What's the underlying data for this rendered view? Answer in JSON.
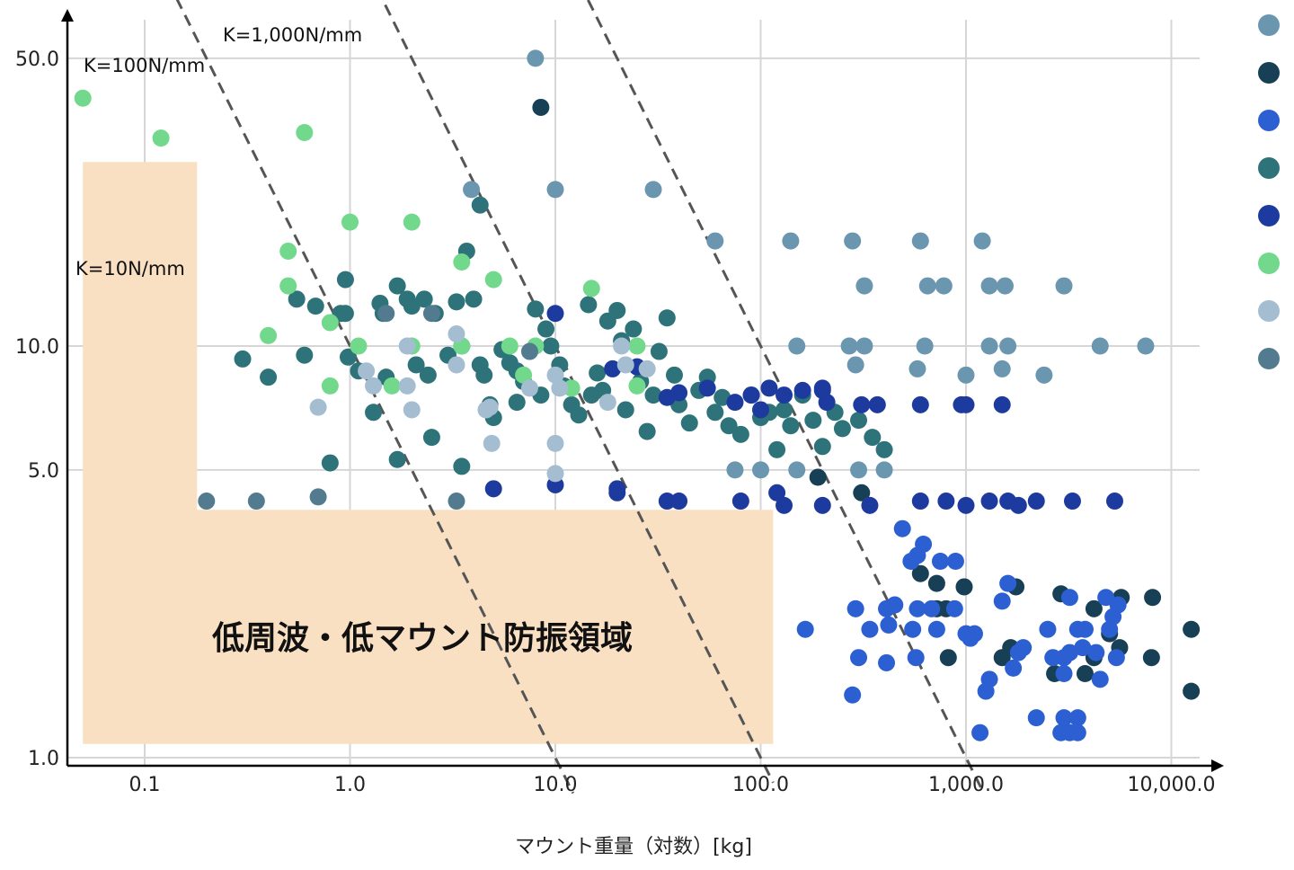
{
  "chart_data": {
    "type": "scatter",
    "xlabel": "マウント重量（対数）[kg]",
    "ylabel": "",
    "title": "",
    "x_scale": "log",
    "y_scale": "log",
    "xlim": [
      0.042,
      14000
    ],
    "ylim": [
      0.92,
      62
    ],
    "x_ticks": [
      0.1,
      1,
      10,
      100,
      1000,
      10000
    ],
    "x_tick_labels": [
      "0.1",
      "1.0",
      "10.0",
      "100.0",
      "1,000.0",
      "10,000.0"
    ],
    "y_ticks": [
      1,
      5,
      10,
      50
    ],
    "y_tick_labels": [
      "1.0",
      "5.0",
      "10.0",
      "50.0"
    ],
    "grid": true,
    "legend_position": "right",
    "reference_lines": [
      {
        "label": "K=10N/mm",
        "k": 10,
        "x_range": [
          0.046,
          12.2
        ]
      },
      {
        "label": "K=100N/mm",
        "k": 100,
        "x_range": [
          0.045,
          115
        ]
      },
      {
        "label": "K=1,000N/mm",
        "k": 1000,
        "x_range": [
          0.3,
          1200
        ]
      }
    ],
    "region": {
      "label": "低周波・低マウント防振領域",
      "color": "#fae0c3",
      "polygon": [
        [
          0.05,
          1.08
        ],
        [
          0.05,
          28
        ],
        [
          0.18,
          28
        ],
        [
          0.18,
          4.0
        ],
        [
          115,
          4.0
        ],
        [
          115,
          1.08
        ]
      ]
    },
    "series": [
      {
        "color": "#6b96b0",
        "points": [
          [
            8,
            50
          ],
          [
            3.9,
            24
          ],
          [
            10,
            24
          ],
          [
            30,
            24
          ],
          [
            60,
            18
          ],
          [
            140,
            18
          ],
          [
            280,
            18
          ],
          [
            600,
            18
          ],
          [
            1200,
            18
          ],
          [
            320,
            14
          ],
          [
            650,
            14
          ],
          [
            780,
            14
          ],
          [
            1300,
            14
          ],
          [
            1550,
            14
          ],
          [
            3000,
            14
          ],
          [
            150,
            10
          ],
          [
            270,
            10
          ],
          [
            320,
            10
          ],
          [
            630,
            10
          ],
          [
            1300,
            10
          ],
          [
            1600,
            10
          ],
          [
            4500,
            10
          ],
          [
            7500,
            10
          ],
          [
            290,
            9
          ],
          [
            580,
            8.8
          ],
          [
            1000,
            8.5
          ],
          [
            1500,
            8.8
          ],
          [
            2400,
            8.5
          ],
          [
            75,
            5.0
          ],
          [
            100,
            5.0
          ],
          [
            150,
            5.0
          ],
          [
            300,
            5.0
          ],
          [
            400,
            5.0
          ]
        ]
      },
      {
        "color": "#173f55",
        "points": [
          [
            8.5,
            38
          ],
          [
            190,
            4.8
          ],
          [
            310,
            4.4
          ],
          [
            600,
            2.8
          ],
          [
            720,
            2.65
          ],
          [
            980,
            2.6
          ],
          [
            1750,
            2.6
          ],
          [
            2900,
            2.5
          ],
          [
            5700,
            2.45
          ],
          [
            8100,
            2.45
          ],
          [
            720,
            2.3
          ],
          [
            800,
            2.3
          ],
          [
            4200,
            2.3
          ],
          [
            5000,
            2.0
          ],
          [
            12500,
            2.05
          ],
          [
            1650,
            1.85
          ],
          [
            5600,
            1.85
          ],
          [
            820,
            1.75
          ],
          [
            1500,
            1.75
          ],
          [
            4200,
            1.75
          ],
          [
            8000,
            1.75
          ],
          [
            2700,
            1.6
          ],
          [
            3800,
            1.6
          ],
          [
            12500,
            1.45
          ]
        ]
      },
      {
        "color": "#2c5fd1",
        "points": [
          [
            490,
            3.6
          ],
          [
            620,
            3.3
          ],
          [
            580,
            3.1
          ],
          [
            540,
            3.0
          ],
          [
            750,
            3.0
          ],
          [
            890,
            3.0
          ],
          [
            1600,
            2.65
          ],
          [
            1500,
            2.4
          ],
          [
            3200,
            2.45
          ],
          [
            4800,
            2.45
          ],
          [
            5500,
            2.35
          ],
          [
            290,
            2.3
          ],
          [
            410,
            2.3
          ],
          [
            450,
            2.35
          ],
          [
            580,
            2.3
          ],
          [
            680,
            2.3
          ],
          [
            880,
            2.3
          ],
          [
            5200,
            2.2
          ],
          [
            420,
            2.1
          ],
          [
            165,
            2.05
          ],
          [
            340,
            2.05
          ],
          [
            550,
            2.05
          ],
          [
            720,
            2.05
          ],
          [
            1000,
            2.0
          ],
          [
            1100,
            2.0
          ],
          [
            1050,
            1.95
          ],
          [
            2500,
            2.05
          ],
          [
            3500,
            2.05
          ],
          [
            3800,
            2.05
          ],
          [
            5000,
            2.05
          ],
          [
            1900,
            1.85
          ],
          [
            1800,
            1.8
          ],
          [
            3700,
            1.85
          ],
          [
            2650,
            1.75
          ],
          [
            3000,
            1.75
          ],
          [
            3200,
            1.8
          ],
          [
            4300,
            1.8
          ],
          [
            5400,
            1.75
          ],
          [
            300,
            1.75
          ],
          [
            570,
            1.75
          ],
          [
            410,
            1.7
          ],
          [
            1700,
            1.65
          ],
          [
            3000,
            1.6
          ],
          [
            1300,
            1.55
          ],
          [
            4500,
            1.55
          ],
          [
            1250,
            1.45
          ],
          [
            280,
            1.42
          ],
          [
            1170,
            1.15
          ],
          [
            2200,
            1.25
          ],
          [
            3000,
            1.25
          ],
          [
            3500,
            1.25
          ],
          [
            2900,
            1.15
          ],
          [
            3200,
            1.15
          ],
          [
            3500,
            1.15
          ]
        ]
      },
      {
        "color": "#2e7379",
        "points": [
          [
            4.3,
            22
          ],
          [
            0.3,
            9.3
          ],
          [
            0.4,
            8.4
          ],
          [
            0.55,
            13
          ],
          [
            0.6,
            9.5
          ],
          [
            0.68,
            12.5
          ],
          [
            0.9,
            12.0
          ],
          [
            0.95,
            14.5
          ],
          [
            0.95,
            12.0
          ],
          [
            0.98,
            9.4
          ],
          [
            1.1,
            8.7
          ],
          [
            1.3,
            6.9
          ],
          [
            1.4,
            12.7
          ],
          [
            1.45,
            12.0
          ],
          [
            1.5,
            8.4
          ],
          [
            1.7,
            14.0
          ],
          [
            1.9,
            13.0
          ],
          [
            2.0,
            12.5
          ],
          [
            2.1,
            9.0
          ],
          [
            2.3,
            13.0
          ],
          [
            2.4,
            8.5
          ],
          [
            2.5,
            6.0
          ],
          [
            2.6,
            12.0
          ],
          [
            3.0,
            9.5
          ],
          [
            3.3,
            12.8
          ],
          [
            3.5,
            10.0
          ],
          [
            3.7,
            17.0
          ],
          [
            4.0,
            13.0
          ],
          [
            4.3,
            9.0
          ],
          [
            4.5,
            8.5
          ],
          [
            5.0,
            6.7
          ],
          [
            5.5,
            9.8
          ],
          [
            6.0,
            9.1
          ],
          [
            6.5,
            8.7
          ],
          [
            7.0,
            8.2
          ],
          [
            8.0,
            12.3
          ],
          [
            9.0,
            11.0
          ],
          [
            9.5,
            10.0
          ],
          [
            10.5,
            9.0
          ],
          [
            11.0,
            8.0
          ],
          [
            12.0,
            7.2
          ],
          [
            13.0,
            6.8
          ],
          [
            14.5,
            12.6
          ],
          [
            15.0,
            7.6
          ],
          [
            16.0,
            8.6
          ],
          [
            17.0,
            7.8
          ],
          [
            18.0,
            11.5
          ],
          [
            20.0,
            12.2
          ],
          [
            21.0,
            10.3
          ],
          [
            22.0,
            7.0
          ],
          [
            24.0,
            11.0
          ],
          [
            26.0,
            8.2
          ],
          [
            28.0,
            6.2
          ],
          [
            30.0,
            7.6
          ],
          [
            32.0,
            9.7
          ],
          [
            35.0,
            11.7
          ],
          [
            38.0,
            8.5
          ],
          [
            40.0,
            7.2
          ],
          [
            45.0,
            6.5
          ],
          [
            50.0,
            7.8
          ],
          [
            55.0,
            8.4
          ],
          [
            60.0,
            6.9
          ],
          [
            65.0,
            7.5
          ],
          [
            70.0,
            6.4
          ],
          [
            80.0,
            6.1
          ],
          [
            90.0,
            7.6
          ],
          [
            100.0,
            6.7
          ],
          [
            110.0,
            6.9
          ],
          [
            120.0,
            5.6
          ],
          [
            130.0,
            7.0
          ],
          [
            140.0,
            6.4
          ],
          [
            160.0,
            7.6
          ],
          [
            180.0,
            6.6
          ],
          [
            200.0,
            5.7
          ],
          [
            230.0,
            6.9
          ],
          [
            250.0,
            6.3
          ],
          [
            300.0,
            6.6
          ],
          [
            350.0,
            6.0
          ],
          [
            400.0,
            5.6
          ],
          [
            0.8,
            5.2
          ],
          [
            1.7,
            5.3
          ],
          [
            3.5,
            5.1
          ],
          [
            4.8,
            7.2
          ],
          [
            6.5,
            7.3
          ],
          [
            8.5,
            7.6
          ]
        ]
      },
      {
        "color": "#1d3a9e",
        "points": [
          [
            10.0,
            12.0
          ],
          [
            19.0,
            8.8
          ],
          [
            25.0,
            8.9
          ],
          [
            35.0,
            7.5
          ],
          [
            40.0,
            7.7
          ],
          [
            55.0,
            7.9
          ],
          [
            75.0,
            7.3
          ],
          [
            90.0,
            7.6
          ],
          [
            110.0,
            7.9
          ],
          [
            130.0,
            7.6
          ],
          [
            200.0,
            7.8
          ],
          [
            210.0,
            7.3
          ],
          [
            310.0,
            7.2
          ],
          [
            370.0,
            7.2
          ],
          [
            600.0,
            7.2
          ],
          [
            1000.0,
            7.2
          ],
          [
            1500.0,
            7.2
          ],
          [
            160.0,
            7.8
          ],
          [
            200.0,
            7.9
          ],
          [
            10.0,
            4.6
          ],
          [
            5.0,
            4.5
          ],
          [
            20.0,
            4.4
          ],
          [
            20.0,
            4.5
          ],
          [
            35.0,
            4.2
          ],
          [
            40.0,
            4.2
          ],
          [
            80.0,
            4.2
          ],
          [
            120.0,
            4.4
          ],
          [
            130.0,
            4.1
          ],
          [
            200.0,
            4.1
          ],
          [
            340.0,
            4.1
          ],
          [
            600.0,
            4.2
          ],
          [
            800.0,
            4.2
          ],
          [
            1000.0,
            4.1
          ],
          [
            1300.0,
            4.2
          ],
          [
            1600.0,
            4.2
          ],
          [
            1800.0,
            4.1
          ],
          [
            2200.0,
            4.2
          ],
          [
            3300.0,
            4.2
          ],
          [
            5300.0,
            4.2
          ],
          [
            950.0,
            7.2
          ],
          [
            100.0,
            7.0
          ]
        ]
      },
      {
        "color": "#72d88b",
        "points": [
          [
            0.05,
            40
          ],
          [
            0.12,
            32
          ],
          [
            0.6,
            33
          ],
          [
            1.0,
            20
          ],
          [
            2.0,
            20
          ],
          [
            0.5,
            17
          ],
          [
            3.5,
            16
          ],
          [
            5.0,
            14.5
          ],
          [
            15.0,
            13.8
          ],
          [
            0.5,
            14.0
          ],
          [
            0.8,
            11.4
          ],
          [
            0.4,
            10.6
          ],
          [
            1.1,
            10.0
          ],
          [
            2.0,
            10.0
          ],
          [
            3.5,
            10.0
          ],
          [
            6.0,
            10.0
          ],
          [
            8.0,
            10.0
          ],
          [
            25.0,
            10.0
          ],
          [
            0.8,
            8.0
          ],
          [
            1.6,
            8.0
          ],
          [
            7.0,
            8.5
          ],
          [
            12.0,
            7.9
          ],
          [
            25.0,
            8.0
          ]
        ]
      },
      {
        "color": "#a4bdd1",
        "points": [
          [
            3.3,
            10.7
          ],
          [
            1.2,
            8.7
          ],
          [
            1.3,
            8.0
          ],
          [
            1.9,
            8.0
          ],
          [
            2.0,
            7.0
          ],
          [
            3.3,
            9.0
          ],
          [
            4.6,
            7.0
          ],
          [
            4.8,
            7.1
          ],
          [
            4.9,
            5.8
          ],
          [
            7.5,
            7.9
          ],
          [
            10.0,
            5.8
          ],
          [
            10.0,
            4.9
          ],
          [
            10.0,
            8.5
          ],
          [
            10.5,
            7.9
          ],
          [
            18.0,
            7.3
          ],
          [
            21.0,
            10.0
          ],
          [
            22.0,
            9.0
          ],
          [
            28.0,
            8.8
          ],
          [
            0.7,
            7.1
          ],
          [
            1.9,
            10.0
          ]
        ]
      },
      {
        "color": "#537b90",
        "points": [
          [
            0.2,
            4.2
          ],
          [
            0.35,
            4.2
          ],
          [
            0.7,
            4.3
          ],
          [
            3.3,
            4.2
          ],
          [
            1.5,
            12.0
          ],
          [
            2.5,
            12.0
          ],
          [
            7.5,
            9.7
          ]
        ]
      }
    ]
  }
}
